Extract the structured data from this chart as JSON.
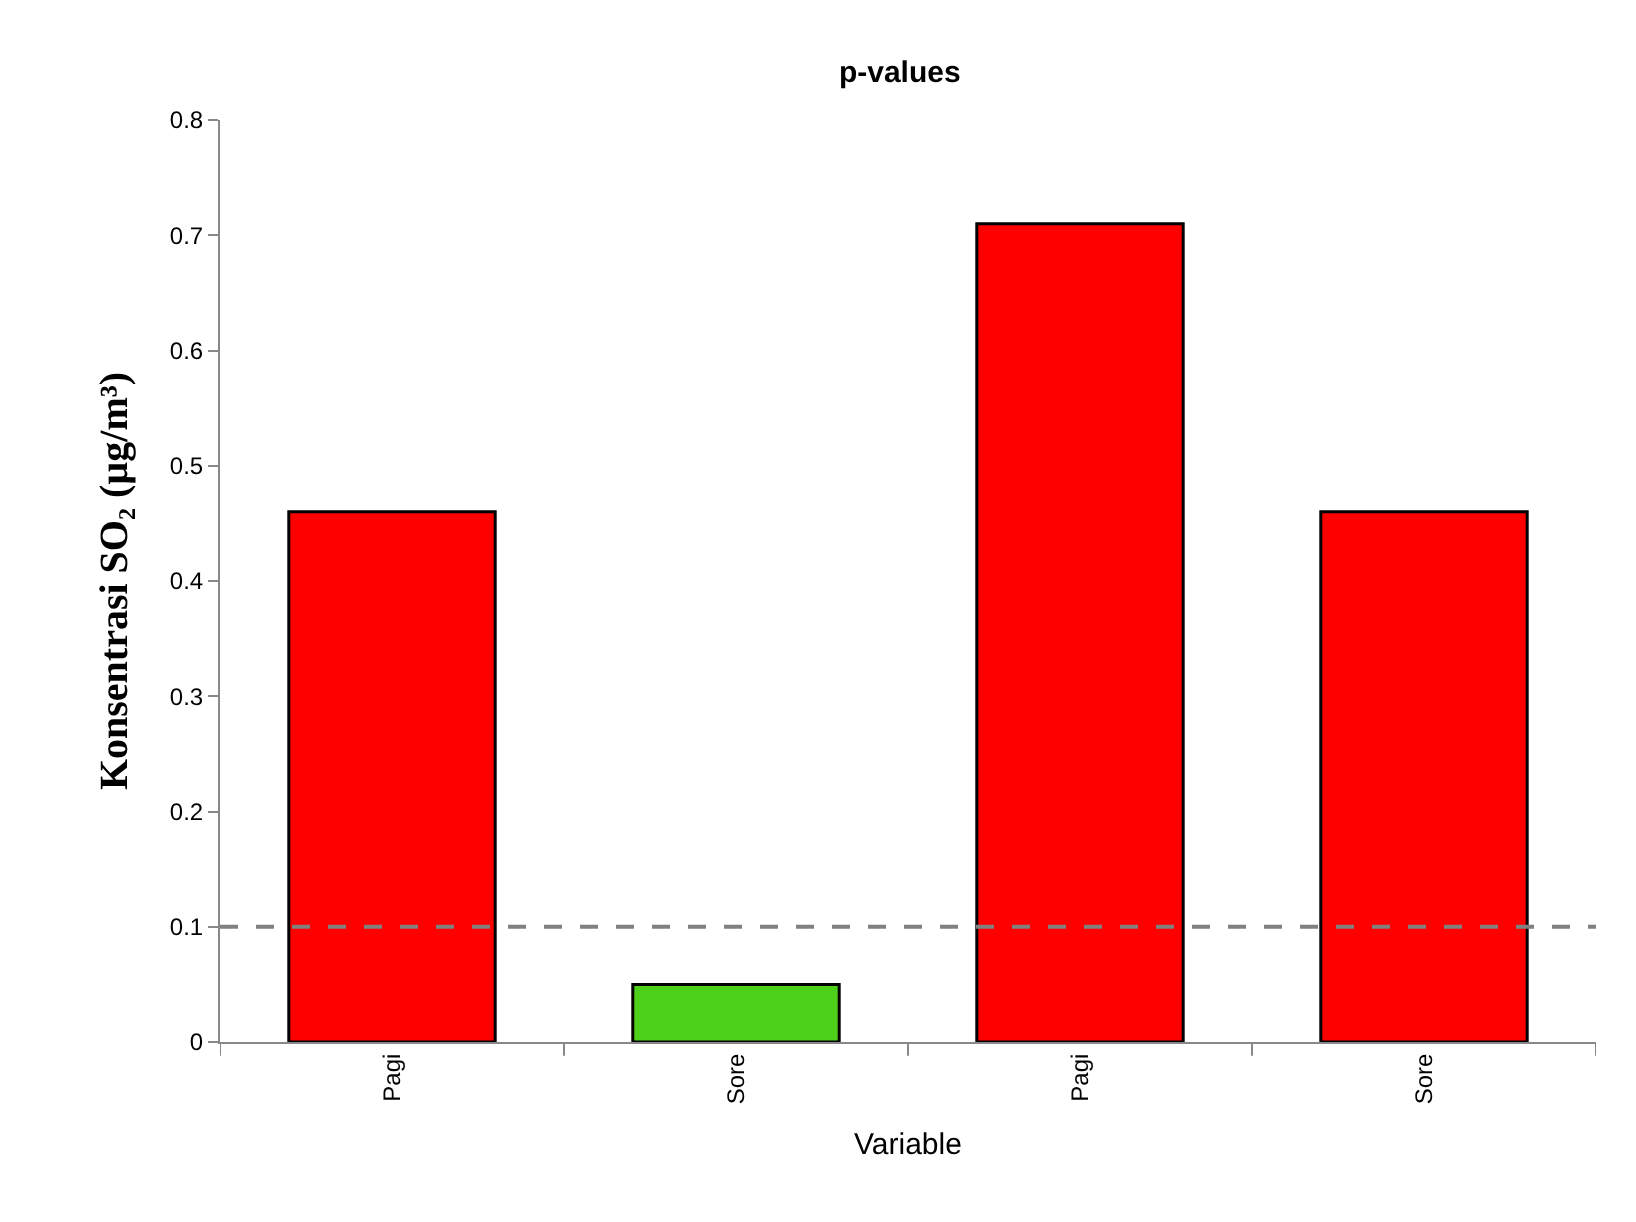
{
  "chart_data": {
    "type": "bar",
    "title": "p-values",
    "xlabel": "Variable",
    "ylabel": "Konsentrasi SO₂ (µg/m³)",
    "categories": [
      "Pagi",
      "Sore",
      "Pagi",
      "Sore"
    ],
    "values": [
      0.46,
      0.05,
      0.71,
      0.46
    ],
    "colors": [
      "#ff0000",
      "#4cd01a",
      "#ff0000",
      "#ff0000"
    ],
    "ylim": [
      0,
      0.8
    ],
    "yticks": [
      0,
      0.1,
      0.2,
      0.3,
      0.4,
      0.5,
      0.6,
      0.7,
      0.8
    ],
    "ref_lines": [
      {
        "axis": "y",
        "value": 0.1,
        "color": "#808080",
        "line_style": "dashed"
      }
    ]
  }
}
